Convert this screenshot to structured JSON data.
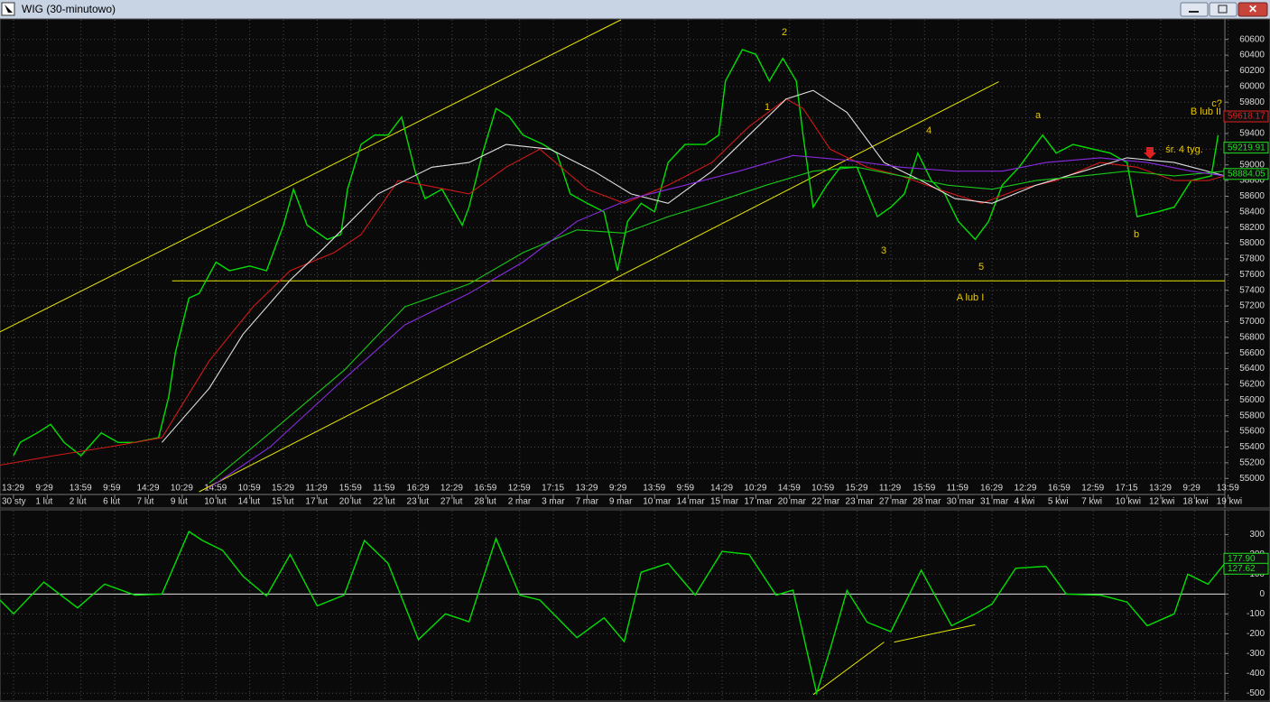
{
  "window": {
    "title": "WIG (30-minutowo)"
  },
  "chart_data": [
    {
      "type": "line",
      "xlim": [
        -0.4,
        35.9
      ],
      "ylim": [
        54830,
        60850
      ],
      "grid": true,
      "yticks": [
        55000,
        55200,
        55400,
        55600,
        55800,
        56000,
        56200,
        56400,
        56600,
        56800,
        57000,
        57200,
        57400,
        57600,
        57800,
        58000,
        58200,
        58400,
        58600,
        58800,
        59000,
        59200,
        59400,
        59600,
        59800,
        60000,
        60200,
        60400,
        60600
      ],
      "xticks": [
        {
          "value": 0,
          "label": "13:29"
        },
        {
          "value": 1,
          "label": "9:29"
        },
        {
          "value": 2,
          "label": "13:59"
        },
        {
          "value": 3,
          "label": "9:59"
        },
        {
          "value": 4,
          "label": "14:29"
        },
        {
          "value": 5,
          "label": "10:29"
        },
        {
          "value": 6,
          "label": "14:59"
        },
        {
          "value": 7,
          "label": "10:59"
        },
        {
          "value": 8,
          "label": "15:29"
        },
        {
          "value": 9,
          "label": "11:29"
        },
        {
          "value": 10,
          "label": "15:59"
        },
        {
          "value": 11,
          "label": "11:59"
        },
        {
          "value": 12,
          "label": "16:29"
        },
        {
          "value": 13,
          "label": "12:29"
        },
        {
          "value": 14,
          "label": "16:59"
        },
        {
          "value": 15,
          "label": "12:59"
        },
        {
          "value": 16,
          "label": "17:15"
        },
        {
          "value": 17,
          "label": "13:29"
        },
        {
          "value": 18,
          "label": "9:29"
        },
        {
          "value": 19,
          "label": "13:59"
        },
        {
          "value": 20,
          "label": "9:59"
        },
        {
          "value": 21,
          "label": "14:29"
        },
        {
          "value": 22,
          "label": "10:29"
        },
        {
          "value": 23,
          "label": "14:59"
        },
        {
          "value": 24,
          "label": "10:59"
        },
        {
          "value": 25,
          "label": "15:29"
        },
        {
          "value": 26,
          "label": "11:29"
        },
        {
          "value": 27,
          "label": "15:59"
        },
        {
          "value": 28,
          "label": "11:59"
        },
        {
          "value": 29,
          "label": "16:29"
        },
        {
          "value": 30,
          "label": "12:29"
        },
        {
          "value": 31,
          "label": "16:59"
        },
        {
          "value": 32,
          "label": "12:59"
        },
        {
          "value": 33,
          "label": "17:15"
        },
        {
          "value": 34,
          "label": "13:29"
        },
        {
          "value": 35,
          "label": "9:29"
        },
        {
          "value": 36,
          "label": "13:59"
        }
      ],
      "xtick_dates": [
        "30 sty",
        "1 lut",
        "2 lut",
        "6 lut",
        "7 lut",
        "9 lut",
        "10 lut",
        "14 lut",
        "15 lut",
        "17 lut",
        "20 lut",
        "22 lut",
        "23 lut",
        "27 lut",
        "28 lut",
        "2 mar",
        "3 mar",
        "7 mar",
        "9 mar",
        "10 mar",
        "14 mar",
        "15 mar",
        "17 mar",
        "20 mar",
        "22 mar",
        "23 mar",
        "27 mar",
        "28 mar",
        "30 mar",
        "31 mar",
        "4 kwi",
        "5 kwi",
        "7 kwi",
        "10 kwi",
        "12 kwi",
        "18 kwi",
        "19 kwi"
      ],
      "series": [
        {
          "color": "#00e000",
          "x": [
            0.0,
            0.2,
            0.7,
            1.1,
            1.5,
            2.0,
            2.6,
            3.1,
            3.6,
            4.3,
            4.6,
            4.8,
            5.2,
            5.5,
            6.0,
            6.4,
            7.0,
            7.5,
            8.0,
            8.3,
            8.7,
            9.3,
            9.7,
            9.9,
            10.3,
            10.7,
            11.1,
            11.5,
            11.9,
            12.2,
            12.7,
            13.3,
            13.5,
            13.9,
            14.3,
            14.7,
            15.1,
            15.7,
            16.1,
            16.5,
            17.0,
            17.5,
            17.9,
            18.2,
            18.6,
            19.0,
            19.4,
            19.9,
            20.5,
            20.9,
            21.1,
            21.6,
            22.0,
            22.4,
            22.8,
            23.2,
            23.4,
            23.7,
            24.1,
            24.5,
            25.0,
            25.6,
            26.0,
            26.4,
            26.8,
            27.2,
            27.6,
            28.0,
            28.5,
            28.9,
            29.3,
            29.8,
            30.5,
            30.9,
            31.4,
            32.0,
            32.5,
            33.0,
            33.3,
            33.9,
            34.4,
            34.9,
            35.5,
            35.7
          ],
          "values": [
            55290,
            55460,
            55580,
            55690,
            55460,
            55290,
            55580,
            55460,
            55460,
            55520,
            56040,
            56610,
            57300,
            57360,
            57760,
            57650,
            57710,
            57650,
            58230,
            58690,
            58230,
            58050,
            58110,
            58690,
            59260,
            59380,
            59380,
            59610,
            58920,
            58570,
            58690,
            58230,
            58460,
            59150,
            59720,
            59610,
            59380,
            59260,
            59150,
            58630,
            58510,
            58400,
            57650,
            58280,
            58510,
            58400,
            59030,
            59260,
            59260,
            59380,
            60070,
            60470,
            60410,
            60070,
            60360,
            60070,
            59380,
            58460,
            58740,
            58970,
            58970,
            58340,
            58460,
            58630,
            59150,
            58800,
            58630,
            58280,
            58050,
            58280,
            58740,
            58970,
            59380,
            59150,
            59260,
            59200,
            59150,
            59030,
            58340,
            58400,
            58460,
            58800,
            58860,
            59380
          ]
        },
        {
          "color": "#d01818",
          "x": [
            -0.4,
            1.2,
            2.8,
            4.4,
            5.8,
            7.1,
            8.2,
            9.5,
            10.3,
            11.4,
            12.2,
            13.5,
            14.6,
            15.6,
            17.0,
            18.1,
            19.4,
            20.7,
            21.8,
            22.9,
            23.4,
            24.2,
            25.3,
            26.3,
            27.4,
            28.7,
            29.8,
            30.9,
            32.2,
            33.3,
            34.4,
            35.4,
            35.9
          ],
          "values": [
            55170,
            55290,
            55400,
            55520,
            56500,
            57190,
            57650,
            57880,
            58110,
            58800,
            58740,
            58630,
            58970,
            59200,
            58690,
            58510,
            58740,
            59030,
            59490,
            59840,
            59720,
            59200,
            58970,
            58860,
            58690,
            58510,
            58690,
            58800,
            59030,
            58970,
            58800,
            58800,
            58860
          ]
        },
        {
          "color": "#e0e0e0",
          "x": [
            4.4,
            5.8,
            6.8,
            8.2,
            9.2,
            10.8,
            12.4,
            13.5,
            14.6,
            15.9,
            17.2,
            18.3,
            19.4,
            20.7,
            21.8,
            22.9,
            23.7,
            24.7,
            25.8,
            26.9,
            27.9,
            29.0,
            30.3,
            31.7,
            33.0,
            34.4,
            35.9
          ],
          "values": [
            55460,
            56150,
            56840,
            57530,
            57940,
            58630,
            58970,
            59030,
            59260,
            59200,
            58920,
            58630,
            58510,
            58920,
            59380,
            59840,
            59950,
            59670,
            59030,
            58800,
            58570,
            58510,
            58740,
            58920,
            59090,
            59030,
            58860
          ]
        },
        {
          "color": "#18c818",
          "x": [
            5.8,
            7.6,
            9.8,
            11.6,
            13.5,
            15.1,
            16.7,
            18.1,
            19.4,
            20.7,
            22.3,
            23.7,
            25.0,
            26.3,
            27.7,
            29.0,
            30.3,
            31.7,
            33.0,
            34.4,
            35.9
          ],
          "values": [
            54940,
            55580,
            56380,
            57190,
            57480,
            57880,
            58170,
            58130,
            58340,
            58510,
            58740,
            58920,
            58970,
            58860,
            58740,
            58690,
            58800,
            58860,
            58920,
            58860,
            58920
          ]
        },
        {
          "color": "#8a2be2",
          "x": [
            5.8,
            7.6,
            9.8,
            11.6,
            13.5,
            15.1,
            16.7,
            18.3,
            19.9,
            21.5,
            23.1,
            24.7,
            26.3,
            27.9,
            29.3,
            30.6,
            32.2,
            33.6,
            34.9,
            35.9
          ],
          "values": [
            54880,
            55400,
            56270,
            56960,
            57360,
            57760,
            58280,
            58570,
            58740,
            58920,
            59120,
            59060,
            58970,
            58920,
            58920,
            59030,
            59090,
            59030,
            58920,
            58860
          ]
        }
      ],
      "trendlines": [
        {
          "color": "#e8e800",
          "x": [
            -0.4,
            18.0
          ],
          "values": [
            56870,
            60850
          ]
        },
        {
          "color": "#e8e800",
          "x": [
            5.5,
            29.2
          ],
          "values": [
            54830,
            60060
          ]
        },
        {
          "color": "#e8e800",
          "x": [
            4.7,
            35.9
          ],
          "values": [
            57520,
            57520
          ]
        }
      ],
      "annotation_color": "#e8c800",
      "annotations": [
        "2",
        "1",
        "3",
        "4",
        "5",
        "a",
        "b",
        "c?",
        "B lub II",
        "A lub I",
        "śr. 4 tyg."
      ],
      "last_value_labels": [
        {
          "value": 59618.17,
          "color": "#e02020"
        },
        {
          "value": 59219.91,
          "color": "#20e020"
        },
        {
          "value": 58884.05,
          "color": "#20e020"
        }
      ]
    },
    {
      "type": "line",
      "xlim": [
        -0.4,
        35.9
      ],
      "ylim": [
        -535,
        420
      ],
      "grid": true,
      "yticks": [
        -500,
        -400,
        -300,
        -200,
        -100,
        0,
        100,
        200,
        300
      ],
      "series": [
        {
          "color": "#00e000",
          "x": [
            -0.4,
            0.0,
            0.9,
            1.9,
            2.7,
            3.6,
            4.4,
            5.2,
            5.6,
            6.2,
            6.8,
            7.5,
            8.2,
            9.0,
            9.8,
            10.4,
            11.1,
            12.0,
            12.8,
            13.5,
            14.3,
            15.0,
            15.6,
            16.7,
            17.5,
            18.1,
            18.6,
            19.4,
            20.2,
            21.0,
            21.8,
            22.6,
            23.1,
            23.8,
            24.2,
            24.7,
            25.3,
            26.0,
            26.9,
            27.8,
            28.5,
            29.0,
            29.7,
            30.6,
            31.2,
            32.2,
            33.0,
            33.6,
            34.4,
            34.8,
            35.4,
            35.9
          ],
          "values": [
            -30,
            -100,
            60,
            -70,
            50,
            -5,
            0,
            315,
            270,
            220,
            90,
            -10,
            200,
            -60,
            -5,
            270,
            155,
            -230,
            -100,
            -140,
            280,
            -5,
            -30,
            -220,
            -120,
            -240,
            110,
            155,
            -5,
            215,
            200,
            -5,
            20,
            -500,
            -280,
            18,
            -142,
            -190,
            120,
            -160,
            -100,
            -50,
            130,
            140,
            0,
            -5,
            -40,
            -160,
            -100,
            100,
            50,
            155
          ]
        }
      ],
      "trendlines": [
        {
          "color": "#e8e800",
          "x": [
            23.7,
            25.8
          ],
          "values": [
            -507,
            -242
          ]
        },
        {
          "color": "#e8e800",
          "x": [
            26.1,
            28.5
          ],
          "values": [
            -242,
            -155
          ]
        }
      ],
      "last_value_labels": [
        {
          "value": 177.9,
          "label": "177.90",
          "color": "#20e020"
        },
        {
          "value": 127.62,
          "color": "#20e020"
        }
      ]
    }
  ]
}
